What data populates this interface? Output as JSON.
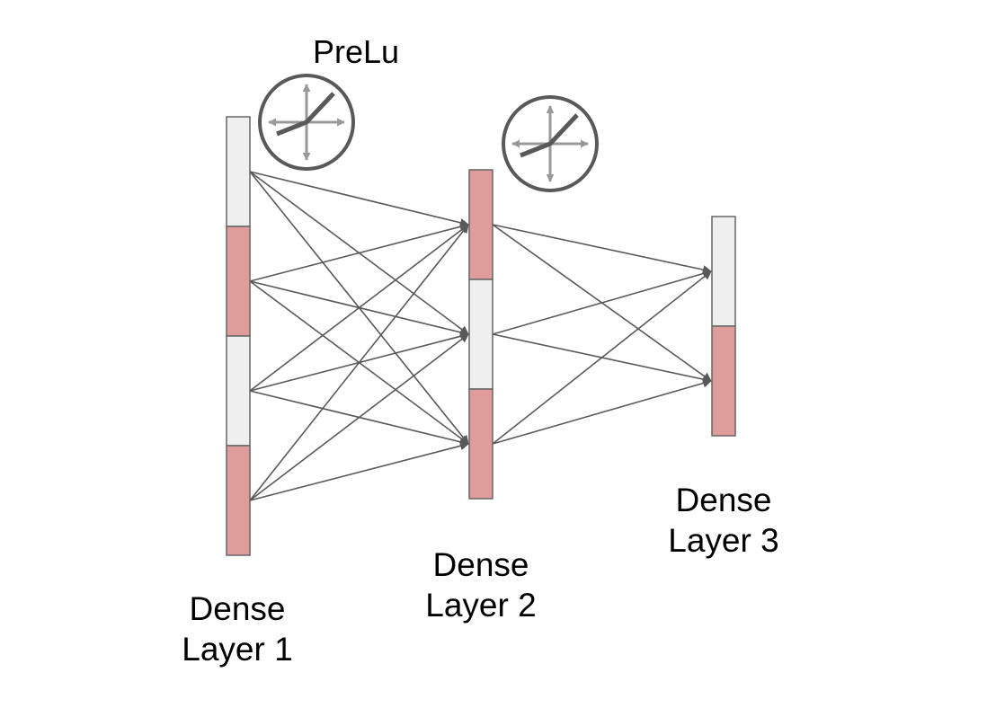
{
  "activation_label": "PreLu",
  "layers": [
    {
      "label_line1": "Dense",
      "label_line2": "Layer 1",
      "cells": [
        "light",
        "red",
        "light",
        "red"
      ]
    },
    {
      "label_line1": "Dense",
      "label_line2": "Layer 2",
      "cells": [
        "red",
        "light",
        "red"
      ]
    },
    {
      "label_line1": "Dense",
      "label_line2": "Layer 3",
      "cells": [
        "light",
        "red"
      ]
    }
  ],
  "colors": {
    "cell_light": "#efefef",
    "cell_red": "#e09b9b",
    "cell_border": "#666666",
    "edge": "#595959",
    "icon_ring": "#595959",
    "icon_axes": "#999999",
    "icon_curve": "#595959"
  },
  "icons": [
    "prelu-activation-icon",
    "prelu-activation-icon"
  ]
}
